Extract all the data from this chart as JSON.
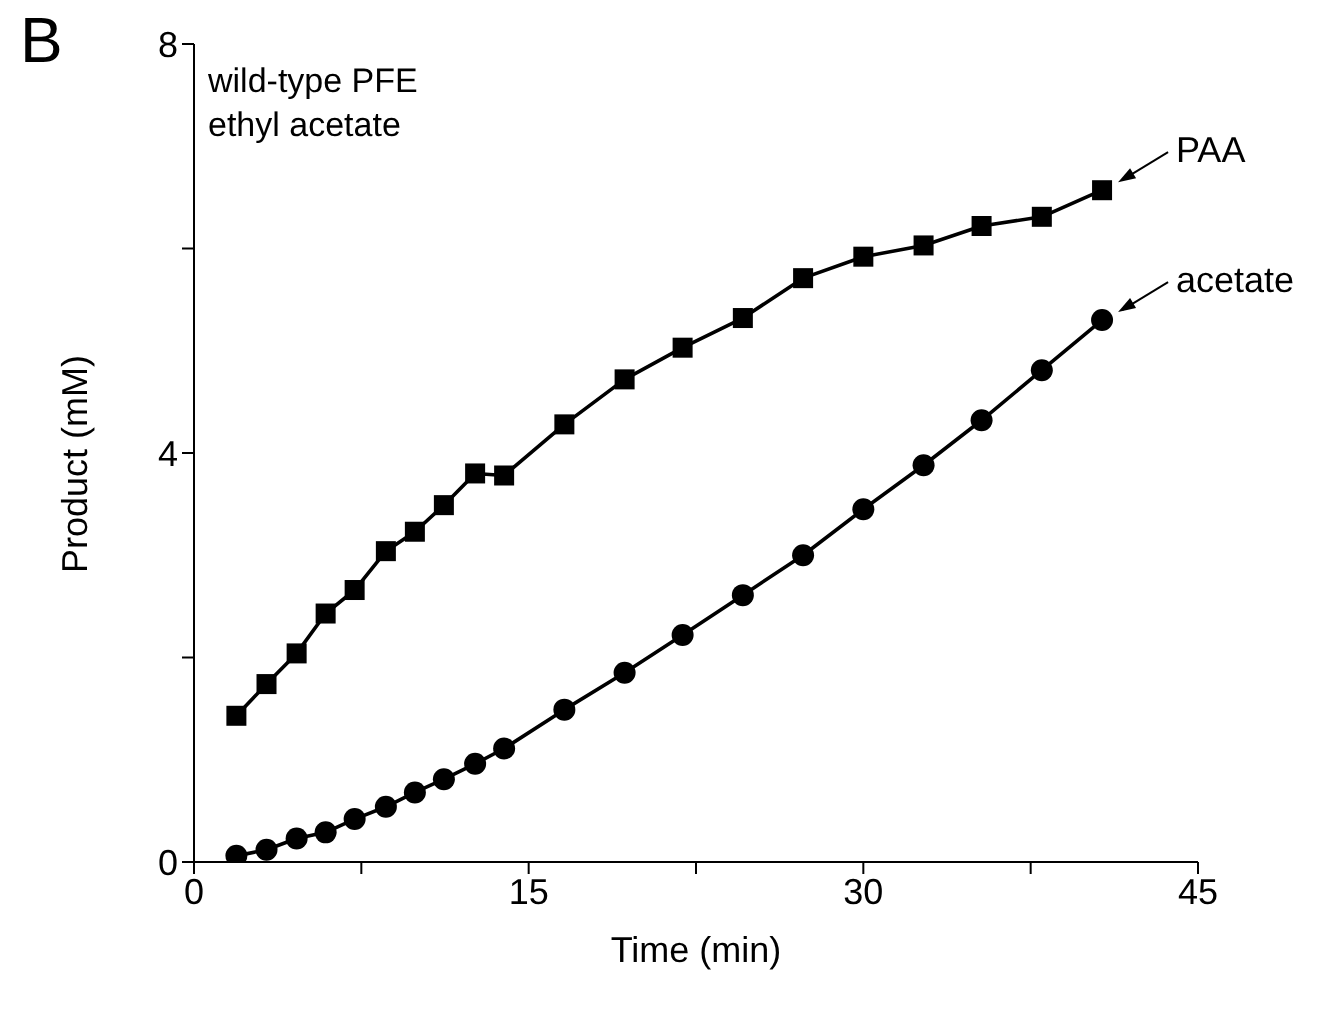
{
  "chart_data": {
    "type": "line",
    "xlabel": "Time (min)",
    "ylabel": "Product (mM)",
    "annotations": [
      "B",
      "wild-type PFE",
      "ethyl acetate",
      {
        "text": "PAA",
        "x": 40.7,
        "y": 6.57
      },
      {
        "text": "acetate",
        "x": 40.7,
        "y": 5.3
      }
    ],
    "x": [
      1.9,
      3.25,
      4.6,
      5.9,
      7.2,
      8.6,
      9.9,
      11.2,
      12.6,
      13.9,
      16.6,
      19.3,
      21.9,
      24.6,
      27.3,
      30,
      32.7,
      35.3,
      38,
      40.7
    ],
    "series": [
      {
        "color": "#000000",
        "marker": "square",
        "values": [
          1.43,
          1.74,
          2.04,
          2.43,
          2.66,
          3.04,
          3.23,
          3.49,
          3.8,
          3.78,
          4.28,
          4.72,
          5.03,
          5.32,
          5.71,
          5.92,
          6.03,
          6.22,
          6.31,
          6.57
        ]
      },
      {
        "color": "#000000",
        "marker": "circle",
        "values": [
          0.06,
          0.12,
          0.23,
          0.29,
          0.42,
          0.54,
          0.68,
          0.81,
          0.96,
          1.11,
          1.49,
          1.85,
          2.22,
          2.61,
          3.0,
          3.45,
          3.88,
          4.32,
          4.81,
          5.3
        ]
      }
    ],
    "xlim": [
      0,
      45
    ],
    "xticks": [
      0,
      {
        "value": 7.5,
        "label": null
      },
      15,
      {
        "value": 22.5,
        "label": null
      },
      30,
      {
        "value": 37.5,
        "label": null
      },
      45
    ],
    "ylim": [
      0,
      8
    ],
    "yticks": [
      0,
      {
        "value": 2,
        "label": null
      },
      4,
      {
        "value": 6,
        "label": null
      },
      8
    ],
    "grid": false,
    "legend": false,
    "line_style": "solid"
  }
}
